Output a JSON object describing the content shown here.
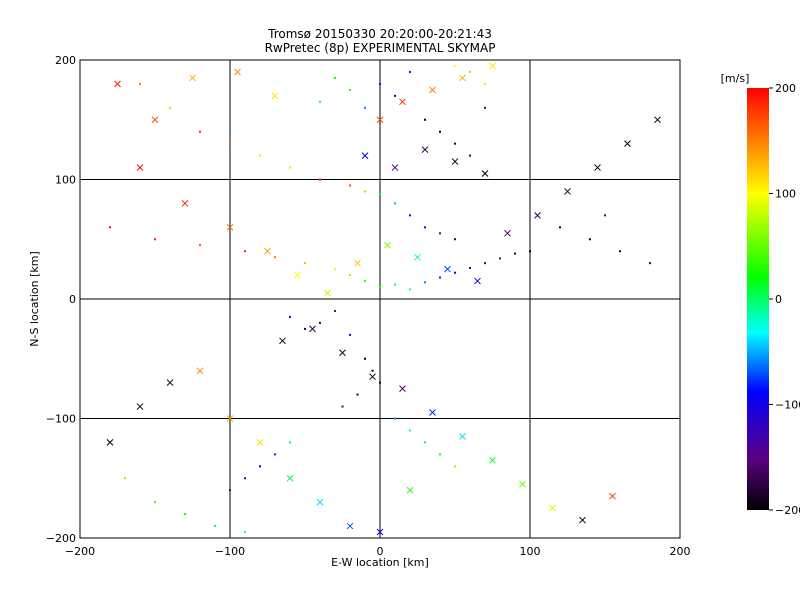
{
  "chart_data": {
    "type": "scatter",
    "title": "Tromsø 20150330 20:20:00-20:21:43",
    "subtitle": "RwPretec (8p) EXPERIMENTAL SKYMAP",
    "xlabel": "E-W location [km]",
    "ylabel": "N-S location [km]",
    "xlim": [
      -200,
      200
    ],
    "ylim": [
      -200,
      200
    ],
    "xticks": [
      -200,
      -100,
      0,
      100,
      200
    ],
    "yticks": [
      -200,
      -100,
      0,
      100,
      200
    ],
    "grid": true,
    "colorbar": {
      "label": "[m/s]",
      "range": [
        -200,
        200
      ],
      "ticks": [
        200,
        100,
        0,
        -100,
        -200
      ],
      "colormap": "rainbow (black-purple-blue-cyan-green-yellow-red)"
    },
    "series": [
      {
        "marker": "dot",
        "points": [
          [
            -160,
            180,
            150
          ],
          [
            -140,
            160,
            120
          ],
          [
            -120,
            140,
            180
          ],
          [
            -100,
            130,
            160
          ],
          [
            -80,
            120,
            110
          ],
          [
            -60,
            110,
            80
          ],
          [
            -40,
            100,
            190
          ],
          [
            -20,
            95,
            170
          ],
          [
            -10,
            90,
            60
          ],
          [
            0,
            88,
            10
          ],
          [
            10,
            80,
            -50
          ],
          [
            20,
            70,
            -90
          ],
          [
            30,
            60,
            -120
          ],
          [
            40,
            55,
            -150
          ],
          [
            50,
            50,
            -180
          ],
          [
            -180,
            60,
            200
          ],
          [
            -150,
            50,
            190
          ],
          [
            -120,
            45,
            170
          ],
          [
            -90,
            40,
            185
          ],
          [
            -70,
            35,
            150
          ],
          [
            -50,
            30,
            130
          ],
          [
            -30,
            25,
            90
          ],
          [
            -20,
            20,
            60
          ],
          [
            -10,
            15,
            40
          ],
          [
            0,
            10,
            20
          ],
          [
            10,
            12,
            0
          ],
          [
            20,
            8,
            -30
          ],
          [
            30,
            14,
            -60
          ],
          [
            40,
            18,
            -80
          ],
          [
            50,
            22,
            -100
          ],
          [
            60,
            26,
            -120
          ],
          [
            70,
            30,
            -140
          ],
          [
            80,
            34,
            -160
          ],
          [
            90,
            38,
            -180
          ],
          [
            100,
            40,
            -200
          ],
          [
            -30,
            -10,
            -150
          ],
          [
            -40,
            -20,
            -170
          ],
          [
            -50,
            -25,
            -190
          ],
          [
            -60,
            -15,
            -130
          ],
          [
            -20,
            -30,
            -110
          ],
          [
            -10,
            -50,
            -200
          ],
          [
            -5,
            -60,
            -190
          ],
          [
            0,
            -70,
            -180
          ],
          [
            -15,
            -80,
            -170
          ],
          [
            -25,
            -90,
            -160
          ],
          [
            10,
            -100,
            -60
          ],
          [
            20,
            -110,
            -20
          ],
          [
            30,
            -120,
            0
          ],
          [
            40,
            -130,
            30
          ],
          [
            50,
            -140,
            60
          ],
          [
            -60,
            -120,
            -40
          ],
          [
            -70,
            -130,
            -80
          ],
          [
            -80,
            -140,
            -100
          ],
          [
            -90,
            -150,
            -120
          ],
          [
            -100,
            -160,
            -140
          ],
          [
            -170,
            -150,
            60
          ],
          [
            -150,
            -170,
            40
          ],
          [
            -130,
            -180,
            20
          ],
          [
            -110,
            -190,
            0
          ],
          [
            -90,
            -195,
            -20
          ],
          [
            120,
            60,
            -200
          ],
          [
            140,
            50,
            -190
          ],
          [
            160,
            40,
            -180
          ],
          [
            180,
            30,
            -170
          ],
          [
            150,
            70,
            -160
          ],
          [
            30,
            150,
            -200
          ],
          [
            40,
            140,
            -190
          ],
          [
            50,
            130,
            -180
          ],
          [
            60,
            120,
            -170
          ],
          [
            70,
            160,
            -160
          ],
          [
            0,
            180,
            -120
          ],
          [
            10,
            170,
            -100
          ],
          [
            20,
            190,
            -80
          ],
          [
            -10,
            160,
            -60
          ],
          [
            60,
            190,
            60
          ],
          [
            70,
            180,
            80
          ],
          [
            50,
            195,
            100
          ],
          [
            -20,
            175,
            40
          ],
          [
            -30,
            185,
            20
          ],
          [
            -40,
            165,
            0
          ]
        ]
      },
      {
        "marker": "x",
        "points": [
          [
            -175,
            180,
            190
          ],
          [
            -150,
            150,
            170
          ],
          [
            -125,
            185,
            130
          ],
          [
            -95,
            190,
            150
          ],
          [
            -70,
            170,
            110
          ],
          [
            -160,
            110,
            200
          ],
          [
            -130,
            80,
            180
          ],
          [
            -100,
            60,
            160
          ],
          [
            -75,
            40,
            140
          ],
          [
            -55,
            20,
            100
          ],
          [
            -35,
            5,
            80
          ],
          [
            -15,
            30,
            120
          ],
          [
            5,
            45,
            60
          ],
          [
            25,
            35,
            -20
          ],
          [
            45,
            25,
            -70
          ],
          [
            65,
            15,
            -110
          ],
          [
            85,
            55,
            -150
          ],
          [
            105,
            70,
            -170
          ],
          [
            125,
            90,
            -190
          ],
          [
            145,
            110,
            -200
          ],
          [
            165,
            130,
            -195
          ],
          [
            185,
            150,
            -185
          ],
          [
            -45,
            -25,
            -175
          ],
          [
            -65,
            -35,
            -195
          ],
          [
            -25,
            -45,
            -185
          ],
          [
            -5,
            -65,
            -200
          ],
          [
            15,
            -75,
            -160
          ],
          [
            35,
            -95,
            -80
          ],
          [
            55,
            -115,
            -40
          ],
          [
            75,
            -135,
            10
          ],
          [
            95,
            -155,
            50
          ],
          [
            115,
            -175,
            90
          ],
          [
            135,
            -185,
            -200
          ],
          [
            155,
            -165,
            180
          ],
          [
            -180,
            -120,
            -200
          ],
          [
            -160,
            -90,
            -190
          ],
          [
            -140,
            -70,
            -180
          ],
          [
            -120,
            -60,
            150
          ],
          [
            -100,
            -100,
            130
          ],
          [
            -80,
            -120,
            110
          ],
          [
            -60,
            -150,
            0
          ],
          [
            -40,
            -170,
            -40
          ],
          [
            -20,
            -190,
            -70
          ],
          [
            0,
            -195,
            -100
          ],
          [
            20,
            -160,
            30
          ],
          [
            -10,
            120,
            -90
          ],
          [
            10,
            110,
            -140
          ],
          [
            30,
            125,
            -170
          ],
          [
            50,
            115,
            -195
          ],
          [
            70,
            105,
            -200
          ],
          [
            0,
            150,
            170
          ],
          [
            15,
            165,
            185
          ],
          [
            35,
            175,
            150
          ],
          [
            55,
            185,
            130
          ],
          [
            75,
            195,
            110
          ]
        ]
      }
    ]
  }
}
